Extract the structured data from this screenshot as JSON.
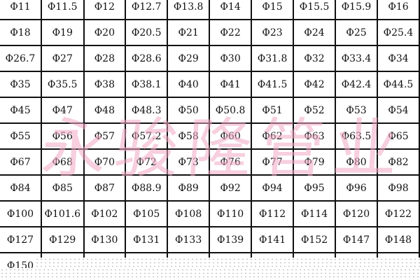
{
  "table": {
    "rows": [
      [
        "Φ11",
        "Φ11.5",
        "Φ12",
        "Φ12.7",
        "Φ13.8",
        "Φ14",
        "Φ15",
        "Φ15.5",
        "Φ15.9",
        "Φ16"
      ],
      [
        "Φ18",
        "Φ19",
        "Φ20",
        "Φ20.5",
        "Φ21",
        "Φ22",
        "Φ23",
        "Φ24",
        "Φ25",
        "Φ25.4"
      ],
      [
        "Φ26.7",
        "Φ27",
        "Φ28",
        "Φ28.6",
        "Φ29",
        "Φ30",
        "Φ31.8",
        "Φ32",
        "Φ33.4",
        "Φ34"
      ],
      [
        "Φ35",
        "Φ35.5",
        "Φ38",
        "Φ38.1",
        "Φ40",
        "Φ41",
        "Φ41.5",
        "Φ42",
        "Φ42.4",
        "Φ44.5"
      ],
      [
        "Φ45",
        "Φ47",
        "Φ48",
        "Φ48.3",
        "Φ50",
        "Φ50.8",
        "Φ51",
        "Φ52",
        "Φ53",
        "Φ54"
      ],
      [
        "Φ55",
        "Φ56",
        "Φ57",
        "Φ57.2",
        "Φ58",
        "Φ60",
        "Φ62",
        "Φ63",
        "Φ63.5",
        "Φ65"
      ],
      [
        "Φ67",
        "Φ68",
        "Φ70",
        "Φ72",
        "Φ73",
        "Φ76",
        "Φ77",
        "Φ79",
        "Φ80",
        "Φ82"
      ],
      [
        "Φ84",
        "Φ85",
        "Φ87",
        "Φ88.9",
        "Φ89",
        "Φ92",
        "Φ94",
        "Φ95",
        "Φ96",
        "Φ98"
      ],
      [
        "Φ100",
        "Φ101.6",
        "Φ102",
        "Φ105",
        "Φ108",
        "Φ110",
        "Φ112",
        "Φ114",
        "Φ120",
        "Φ122"
      ],
      [
        "Φ127",
        "Φ129",
        "Φ130",
        "Φ131",
        "Φ133",
        "Φ139",
        "Φ141",
        "Φ152",
        "Φ147",
        "Φ148"
      ],
      [
        "Φ150",
        "",
        "",
        "",
        "",
        "",
        "",
        "",
        "",
        ""
      ]
    ]
  },
  "watermark": {
    "text": "永骏隆管业",
    "color": "#f2a8c4"
  }
}
